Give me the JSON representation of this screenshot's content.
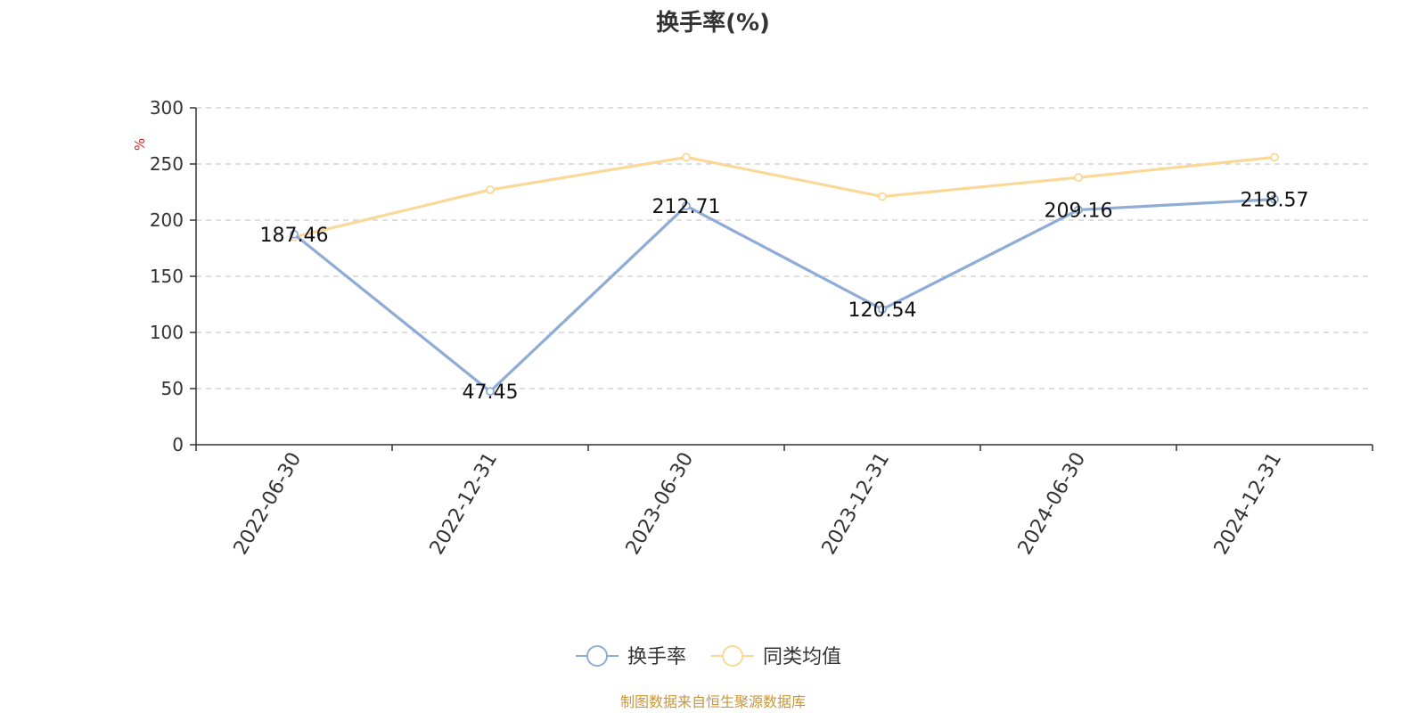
{
  "chart_data": {
    "type": "line",
    "title": "换手率(%)",
    "ylabel": "%",
    "categories": [
      "2022-06-30",
      "2022-12-31",
      "2023-06-30",
      "2023-12-31",
      "2024-06-30",
      "2024-12-31"
    ],
    "ylim": [
      0,
      300
    ],
    "yticks": [
      0,
      50,
      100,
      150,
      200,
      250,
      300
    ],
    "grid": true,
    "legend_position": "bottom-center",
    "series": [
      {
        "name": "换手率",
        "values": [
          187.46,
          47.45,
          212.71,
          120.54,
          209.16,
          218.57
        ],
        "labels": [
          "187.46",
          "47.45",
          "212.71",
          "120.54",
          "209.16",
          "218.57"
        ],
        "color": "#8eacd6"
      },
      {
        "name": "同类均值",
        "values": [
          185,
          227,
          256,
          221,
          238,
          256
        ],
        "color": "#fad897"
      }
    ]
  },
  "source_text": "制图数据来自恒生聚源数据库",
  "source_color": "#c8963c"
}
